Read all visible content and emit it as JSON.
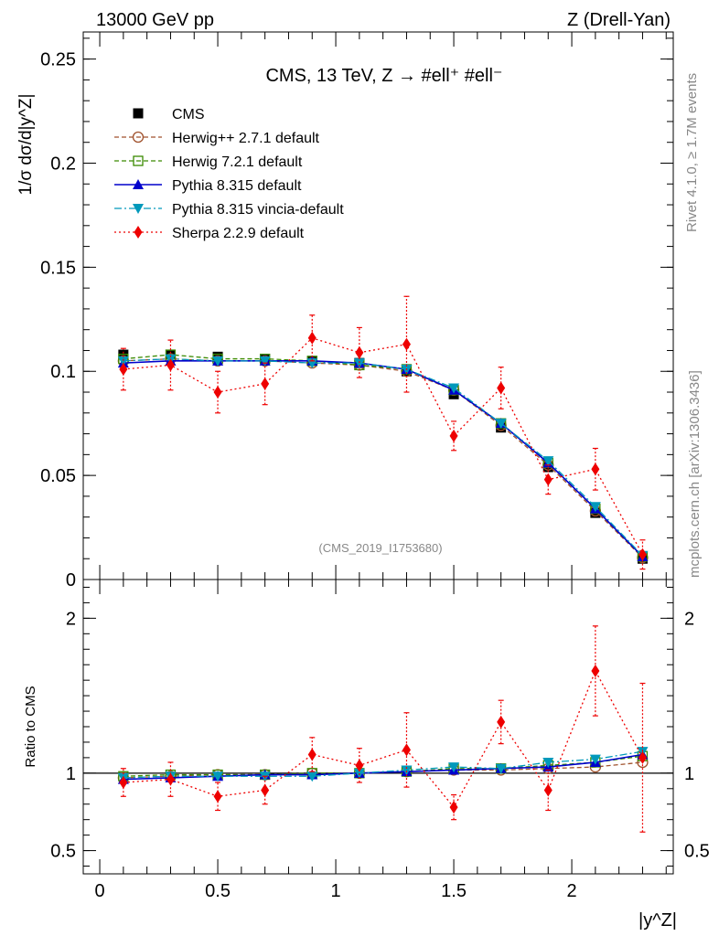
{
  "header": {
    "left": "13000 GeV pp",
    "right": "Z (Drell-Yan)"
  },
  "side_text": {
    "rivet": "Rivet 4.1.0, ≥ 1.7M events",
    "site": "mcplots.cern.ch [arXiv:1306.3436]"
  },
  "chart_data": [
    {
      "type": "scatter",
      "panel": "main",
      "title": "CMS, 13 TeV, Z →  #ell⁺ #ell⁻",
      "watermark": "(CMS_2019_I1753680)",
      "ylabel": "1/σ dσ/d|y^Z|",
      "xlabel": "|y^Z|",
      "xlim": [
        -0.07,
        2.43
      ],
      "ylim": [
        0,
        0.263
      ],
      "yticks": [
        0,
        0.05,
        0.1,
        0.15,
        0.2,
        0.25
      ],
      "ytick_labels": [
        "0",
        "0.05",
        "0.1",
        "0.15",
        "0.2",
        "0.25"
      ],
      "x": [
        0.1,
        0.3,
        0.5,
        0.7,
        0.9,
        1.1,
        1.3,
        1.5,
        1.7,
        1.9,
        2.1,
        2.3
      ],
      "series": [
        {
          "name": "CMS",
          "color": "#000000",
          "marker": "square",
          "line": "none",
          "values": [
            0.108,
            0.108,
            0.107,
            0.106,
            0.105,
            0.104,
            0.1,
            0.089,
            0.073,
            0.054,
            0.032,
            0.01
          ],
          "errors": [
            0.002,
            0.002,
            0.002,
            0.002,
            0.002,
            0.002,
            0.002,
            0.002,
            0.002,
            0.002,
            0.002,
            0.001
          ]
        },
        {
          "name": "Herwig++ 2.7.1 default",
          "color": "#a0522d",
          "marker": "circle-open",
          "line": "dashed",
          "values": [
            0.105,
            0.106,
            0.105,
            0.105,
            0.104,
            0.103,
            0.1,
            0.091,
            0.074,
            0.055,
            0.033,
            0.0105
          ],
          "errors": []
        },
        {
          "name": "Herwig 7.2.1 default",
          "color": "#3a8a00",
          "marker": "square-open",
          "line": "dashed",
          "values": [
            0.106,
            0.108,
            0.106,
            0.106,
            0.105,
            0.103,
            0.101,
            0.091,
            0.075,
            0.056,
            0.034,
            0.011
          ],
          "errors": []
        },
        {
          "name": "Pythia 8.315 default",
          "color": "#0000cc",
          "marker": "triangle-up",
          "line": "solid",
          "values": [
            0.104,
            0.105,
            0.105,
            0.105,
            0.105,
            0.104,
            0.101,
            0.091,
            0.075,
            0.056,
            0.034,
            0.011
          ],
          "errors": []
        },
        {
          "name": "Pythia 8.315 vincia-default",
          "color": "#0099bb",
          "marker": "triangle-down",
          "line": "dashdot",
          "values": [
            0.105,
            0.106,
            0.105,
            0.105,
            0.104,
            0.104,
            0.101,
            0.092,
            0.075,
            0.057,
            0.035,
            0.0115
          ],
          "errors": []
        },
        {
          "name": "Sherpa 2.2.9 default",
          "color": "#ee0000",
          "marker": "diamond",
          "line": "dotted",
          "values": [
            0.101,
            0.103,
            0.09,
            0.094,
            0.116,
            0.109,
            0.113,
            0.069,
            0.092,
            0.048,
            0.053,
            0.012
          ],
          "errors": [
            0.01,
            0.012,
            0.01,
            0.01,
            0.011,
            0.012,
            0.023,
            0.007,
            0.01,
            0.007,
            0.01,
            0.007
          ]
        }
      ]
    },
    {
      "type": "scatter",
      "panel": "ratio",
      "ylabel": "Ratio to CMS",
      "xlabel": "|y^Z|",
      "xlim": [
        -0.07,
        2.43
      ],
      "ylim": [
        0.35,
        2.25
      ],
      "yticks": [
        0.5,
        1,
        2
      ],
      "ytick_labels": [
        "0.5",
        "1",
        "2"
      ],
      "xticks": [
        0,
        0.5,
        1,
        1.5,
        2
      ],
      "xtick_labels": [
        "0",
        "0.5",
        "1",
        "1.5",
        "2"
      ],
      "reference_line": 1,
      "x": [
        0.1,
        0.3,
        0.5,
        0.7,
        0.9,
        1.1,
        1.3,
        1.5,
        1.7,
        1.9,
        2.1,
        2.3
      ],
      "series": [
        {
          "name": "Herwig++ 2.7.1 default",
          "color": "#a0522d",
          "marker": "circle-open",
          "line": "dashed",
          "values": [
            0.97,
            0.98,
            0.99,
            0.99,
            1.0,
            1.0,
            1.01,
            1.02,
            1.02,
            1.03,
            1.04,
            1.07
          ],
          "errors": []
        },
        {
          "name": "Herwig 7.2.1 default",
          "color": "#3a8a00",
          "marker": "square-open",
          "line": "dashed",
          "values": [
            0.98,
            0.99,
            0.99,
            0.99,
            1.0,
            1.0,
            1.01,
            1.03,
            1.03,
            1.05,
            1.07,
            1.11
          ],
          "errors": []
        },
        {
          "name": "Pythia 8.315 default",
          "color": "#0000cc",
          "marker": "triangle-up",
          "line": "solid",
          "values": [
            0.96,
            0.97,
            0.98,
            0.99,
            0.99,
            1.0,
            1.01,
            1.02,
            1.03,
            1.04,
            1.07,
            1.12
          ],
          "errors": []
        },
        {
          "name": "Pythia 8.315 vincia-default",
          "color": "#0099bb",
          "marker": "triangle-down",
          "line": "dashdot",
          "values": [
            0.97,
            0.98,
            0.98,
            0.98,
            0.98,
            1.0,
            1.02,
            1.04,
            1.03,
            1.07,
            1.09,
            1.14
          ],
          "errors": []
        },
        {
          "name": "Sherpa 2.2.9 default",
          "color": "#ee0000",
          "marker": "diamond",
          "line": "dotted",
          "values": [
            0.94,
            0.96,
            0.85,
            0.89,
            1.12,
            1.05,
            1.15,
            0.78,
            1.33,
            0.89,
            1.66,
            1.1
          ],
          "errors": [
            0.09,
            0.11,
            0.09,
            0.09,
            0.11,
            0.11,
            0.24,
            0.08,
            0.14,
            0.13,
            0.29,
            0.48
          ]
        }
      ]
    }
  ]
}
